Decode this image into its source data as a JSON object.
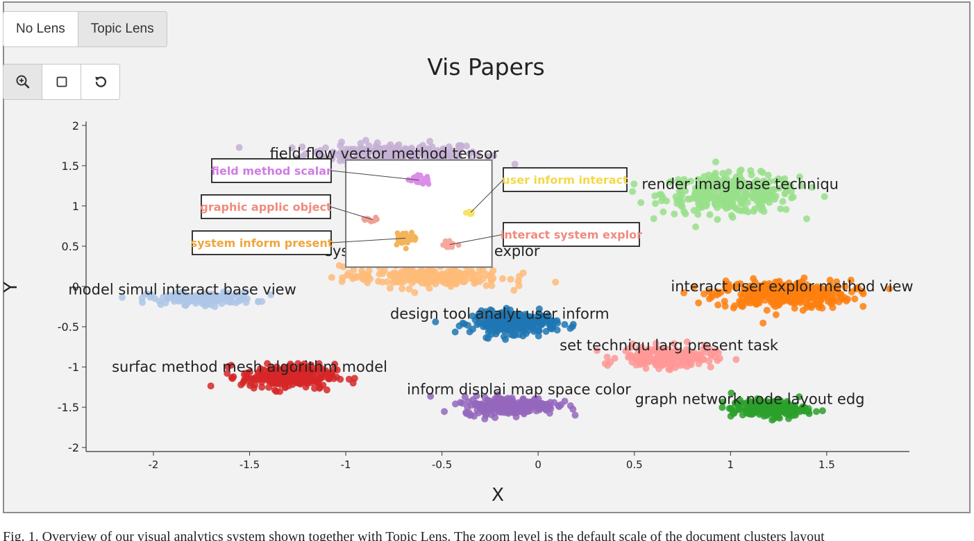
{
  "lens_buttons": [
    {
      "label": "No Lens",
      "active": false
    },
    {
      "label": "Topic Lens",
      "active": true
    }
  ],
  "tool_buttons": [
    {
      "icon": "zoom-in-icon",
      "active": true
    },
    {
      "icon": "box-select-icon",
      "active": false
    },
    {
      "icon": "reset-icon",
      "active": false
    }
  ],
  "caption": "Fig. 1. Overview of our visual analytics system shown together with Topic Lens. The zoom level is the default scale of the document clusters layout",
  "chart_data": {
    "type": "scatter",
    "title": "Vis Papers",
    "xlabel": "X",
    "ylabel": "Y",
    "xlim": [
      -2.35,
      1.93
    ],
    "ylim": [
      -2.05,
      2.05
    ],
    "xticks": [
      -2,
      -1.5,
      -1,
      -0.5,
      0,
      0.5,
      1,
      1.5
    ],
    "xtick_labels": [
      "-2",
      "-1.5",
      "-1",
      "-0.5",
      "0",
      "0.5",
      "1",
      "1.5"
    ],
    "yticks": [
      2,
      1.5,
      1,
      0.5,
      0,
      -0.5,
      -1,
      -1.5,
      -2
    ],
    "ytick_labels": [
      "2",
      "1.5",
      "1",
      "0.5",
      "0",
      "-0.5",
      "-1",
      "-1.5",
      "-2"
    ],
    "grid": false,
    "clusters": [
      {
        "label": "field flow vector method tensor",
        "color": "#c5b0d5",
        "center": [
          -0.75,
          1.65
        ],
        "spread": [
          0.42,
          0.12
        ],
        "count": 200,
        "label_pos": [
          -0.8,
          1.65
        ]
      },
      {
        "label": "render imag base techniqu",
        "color": "#98df8a",
        "center": [
          1.0,
          1.15
        ],
        "spread": [
          0.32,
          0.22
        ],
        "count": 320,
        "label_pos": [
          1.05,
          1.27
        ]
      },
      {
        "label": "interact user explor method view",
        "color": "#ff7f0e",
        "center": [
          1.27,
          -0.1
        ],
        "spread": [
          0.32,
          0.16
        ],
        "count": 320,
        "label_pos": [
          1.32,
          0.0
        ]
      },
      {
        "label": "model simul interact base view",
        "color": "#aec7e8",
        "center": [
          -1.75,
          -0.15
        ],
        "spread": [
          0.25,
          0.07
        ],
        "count": 160,
        "label_pos": [
          -1.85,
          -0.04
        ]
      },
      {
        "label": "design tool analyt user inform",
        "color": "#1f77b4",
        "center": [
          -0.12,
          -0.45
        ],
        "spread": [
          0.2,
          0.12
        ],
        "count": 280,
        "label_pos": [
          -0.2,
          -0.34
        ]
      },
      {
        "label": "set techniqu larg present task",
        "color": "#ff9896",
        "center": [
          0.67,
          -0.88
        ],
        "spread": [
          0.22,
          0.12
        ],
        "count": 200,
        "label_pos": [
          0.68,
          -0.73
        ]
      },
      {
        "label": "surfac method mesh algorithm model",
        "color": "#d62728",
        "center": [
          -1.3,
          -1.12
        ],
        "spread": [
          0.22,
          0.14
        ],
        "count": 260,
        "label_pos": [
          -1.5,
          -1.0
        ]
      },
      {
        "label": "inform displai map space color",
        "color": "#9467bd",
        "center": [
          -0.15,
          -1.48
        ],
        "spread": [
          0.22,
          0.1
        ],
        "count": 240,
        "label_pos": [
          -0.1,
          -1.28
        ]
      },
      {
        "label": "graph network node layout edg",
        "color": "#2ca02c",
        "center": [
          1.2,
          -1.52
        ],
        "spread": [
          0.18,
          0.1
        ],
        "count": 200,
        "label_pos": [
          1.1,
          -1.4
        ]
      },
      {
        "label": "system inform present explor",
        "color": "#ffbb78",
        "center": [
          -0.6,
          0.12
        ],
        "spread": [
          0.38,
          0.12
        ],
        "count": 200,
        "label_pos": [
          -0.55,
          0.44
        ]
      }
    ],
    "lens": {
      "x_range": [
        -1.0,
        -0.24
      ],
      "y_range": [
        0.24,
        1.57
      ],
      "sub_topics": [
        {
          "label": "field method scalar",
          "color": "#da8ee8",
          "text_color": "#d07be3",
          "center": [
            -0.62,
            1.32
          ],
          "spread": [
            0.05,
            0.05
          ],
          "count": 28
        },
        {
          "label": "user inform interact",
          "color": "#f7e36a",
          "text_color": "#f5d84a",
          "center": [
            -0.35,
            0.92
          ],
          "spread": [
            0.02,
            0.02
          ],
          "count": 8
        },
        {
          "label": "graphic applic object",
          "color": "#f39f95",
          "text_color": "#f08a7e",
          "center": [
            -0.86,
            0.83
          ],
          "spread": [
            0.04,
            0.02
          ],
          "count": 10
        },
        {
          "label": "system inform present",
          "color": "#f3b45a",
          "text_color": "#f0a53c",
          "center": [
            -0.69,
            0.6
          ],
          "spread": [
            0.05,
            0.07
          ],
          "count": 40
        },
        {
          "label": "interact system explor",
          "color": "#f6a89e",
          "text_color": "#f08a7e",
          "center": [
            -0.46,
            0.52
          ],
          "spread": [
            0.03,
            0.04
          ],
          "count": 14
        }
      ]
    }
  }
}
